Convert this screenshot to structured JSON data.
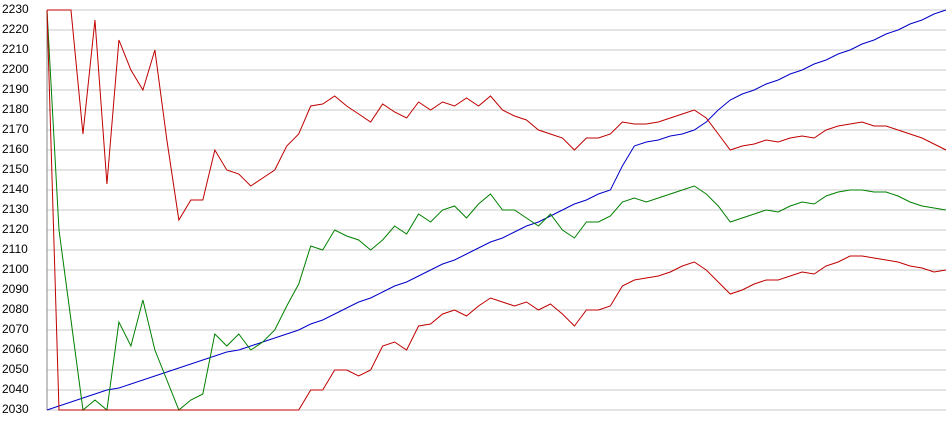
{
  "chart_data": {
    "type": "line",
    "x": [
      0,
      1,
      2,
      3,
      4,
      5,
      6,
      7,
      8,
      9,
      10,
      11,
      12,
      13,
      14,
      15,
      16,
      17,
      18,
      19,
      20,
      21,
      22,
      23,
      24,
      25,
      26,
      27,
      28,
      29,
      30,
      31,
      32,
      33,
      34,
      35,
      36,
      37,
      38,
      39,
      40,
      41,
      42,
      43,
      44,
      45,
      46,
      47,
      48,
      49,
      50,
      51,
      52,
      53,
      54,
      55,
      56,
      57,
      58,
      59,
      60,
      61,
      62,
      63,
      64,
      65,
      66,
      67,
      68,
      69,
      70,
      71,
      72,
      73,
      74,
      75
    ],
    "xlim": [
      0,
      75
    ],
    "ylim": [
      2030,
      2230
    ],
    "yticks": [
      2030,
      2040,
      2050,
      2060,
      2070,
      2080,
      2090,
      2100,
      2110,
      2120,
      2130,
      2140,
      2150,
      2160,
      2170,
      2180,
      2190,
      2200,
      2210,
      2220,
      2230
    ],
    "grid": true,
    "series": [
      {
        "color": "#0000c8",
        "values": [
          2030,
          2032,
          2034,
          2036,
          2038,
          2040,
          2041,
          2043,
          2045,
          2047,
          2049,
          2051,
          2053,
          2055,
          2057,
          2059,
          2060,
          2062,
          2064,
          2066,
          2068,
          2070,
          2073,
          2075,
          2078,
          2081,
          2084,
          2086,
          2089,
          2092,
          2094,
          2097,
          2100,
          2103,
          2105,
          2108,
          2111,
          2114,
          2116,
          2119,
          2122,
          2124,
          2127,
          2130,
          2133,
          2135,
          2138,
          2140,
          2152,
          2162,
          2164,
          2165,
          2167,
          2168,
          2170,
          2174,
          2180,
          2185,
          2188,
          2190,
          2193,
          2195,
          2198,
          2200,
          2203,
          2205,
          2208,
          2210,
          2213,
          2215,
          2218,
          2220,
          2223,
          2225,
          2228,
          2230
        ]
      },
      {
        "color": "#c00000",
        "values": [
          2230,
          2230,
          2230,
          2168,
          2225,
          2143,
          2215,
          2200,
          2190,
          2210,
          2165,
          2125,
          2135,
          2135,
          2160,
          2150,
          2148,
          2142,
          2146,
          2150,
          2162,
          2168,
          2182,
          2183,
          2187,
          2182,
          2178,
          2174,
          2183,
          2179,
          2176,
          2184,
          2180,
          2184,
          2182,
          2186,
          2182,
          2187,
          2180,
          2177,
          2175,
          2170,
          2168,
          2166,
          2160,
          2166,
          2166,
          2168,
          2174,
          2173,
          2173,
          2174,
          2176,
          2178,
          2180,
          2176,
          2168,
          2160,
          2162,
          2163,
          2165,
          2164,
          2166,
          2167,
          2166,
          2170,
          2172,
          2173,
          2174,
          2172,
          2172,
          2170,
          2168,
          2166,
          2163,
          2160
        ]
      },
      {
        "color": "#008000",
        "values": [
          2230,
          2120,
          2075,
          2030,
          2035,
          2030,
          2074,
          2062,
          2085,
          2060,
          2045,
          2030,
          2035,
          2038,
          2068,
          2062,
          2068,
          2060,
          2064,
          2070,
          2082,
          2093,
          2112,
          2110,
          2120,
          2117,
          2115,
          2110,
          2115,
          2122,
          2118,
          2128,
          2124,
          2130,
          2132,
          2126,
          2133,
          2138,
          2130,
          2130,
          2126,
          2122,
          2128,
          2120,
          2116,
          2124,
          2124,
          2127,
          2134,
          2136,
          2134,
          2136,
          2138,
          2140,
          2142,
          2138,
          2132,
          2124,
          2126,
          2128,
          2130,
          2129,
          2132,
          2134,
          2133,
          2137,
          2139,
          2140,
          2140,
          2139,
          2139,
          2137,
          2134,
          2132,
          2131,
          2130
        ]
      },
      {
        "color": "#c00000",
        "values": [
          2230,
          2030,
          2030,
          2030,
          2030,
          2030,
          2030,
          2030,
          2030,
          2030,
          2030,
          2030,
          2030,
          2030,
          2030,
          2030,
          2030,
          2030,
          2030,
          2030,
          2030,
          2030,
          2040,
          2040,
          2050,
          2050,
          2047,
          2050,
          2062,
          2064,
          2060,
          2072,
          2073,
          2078,
          2080,
          2077,
          2082,
          2086,
          2084,
          2082,
          2084,
          2080,
          2083,
          2078,
          2072,
          2080,
          2080,
          2082,
          2092,
          2095,
          2096,
          2097,
          2099,
          2102,
          2104,
          2100,
          2094,
          2088,
          2090,
          2093,
          2095,
          2095,
          2097,
          2099,
          2098,
          2102,
          2104,
          2107,
          2107,
          2106,
          2105,
          2104,
          2102,
          2101,
          2099,
          2100
        ]
      }
    ]
  }
}
